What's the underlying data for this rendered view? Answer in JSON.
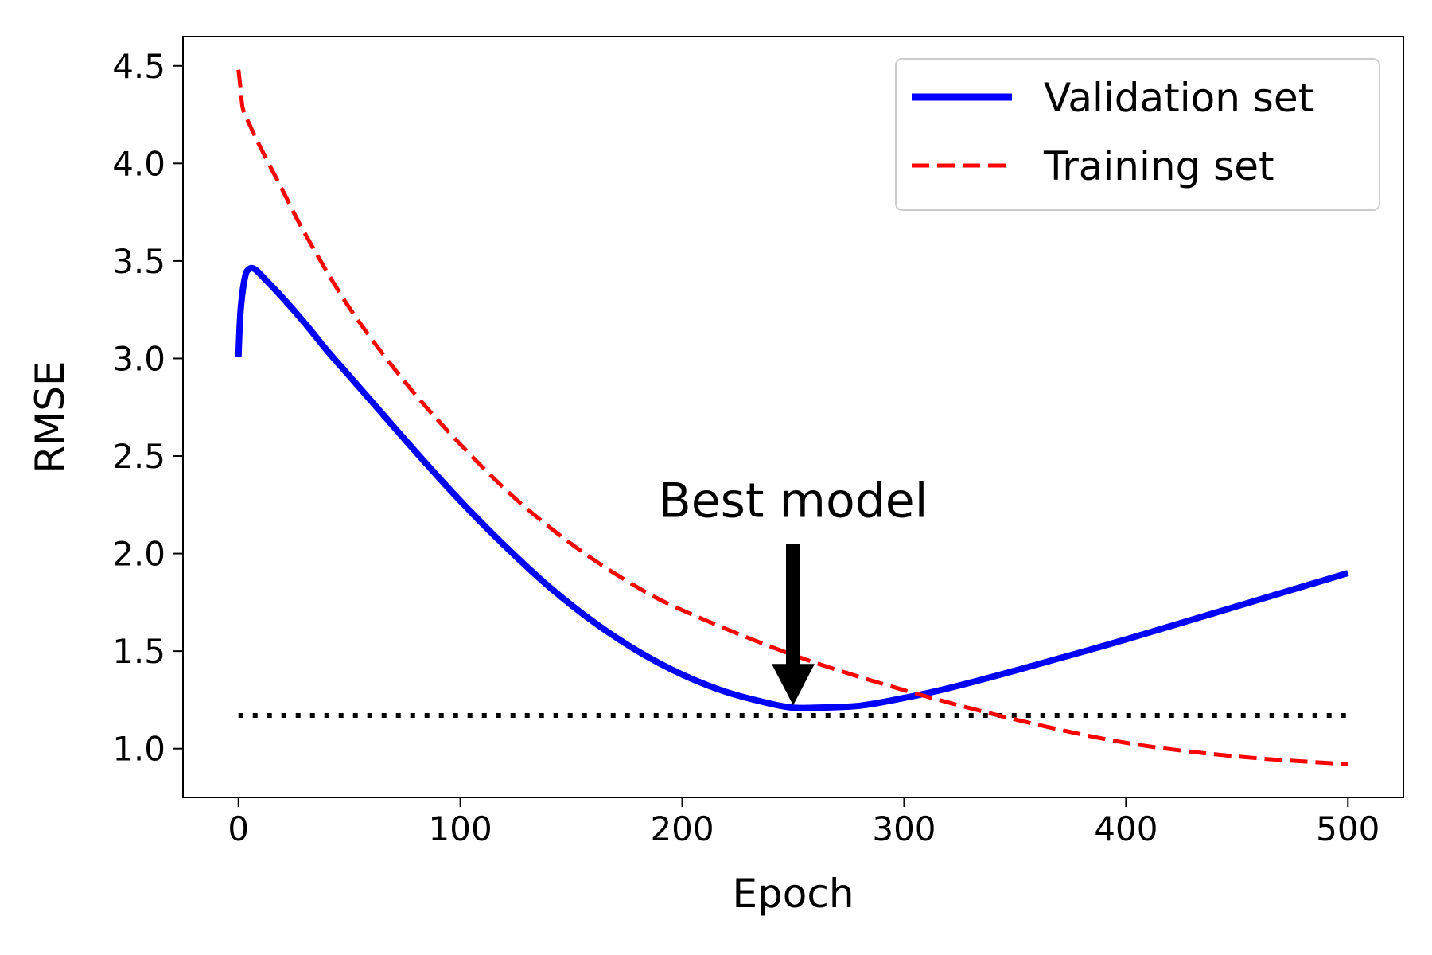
{
  "chart_data": {
    "type": "line",
    "xlabel": "Epoch",
    "ylabel": "RMSE",
    "xlim": [
      -25,
      525
    ],
    "ylim": [
      0.75,
      4.65
    ],
    "x_ticks": [
      0,
      100,
      200,
      300,
      400,
      500
    ],
    "x_tick_labels": [
      "0",
      "100",
      "200",
      "300",
      "400",
      "500"
    ],
    "y_ticks": [
      1.0,
      1.5,
      2.0,
      2.5,
      3.0,
      3.5,
      4.0,
      4.5
    ],
    "y_tick_labels": [
      "1.0",
      "1.5",
      "2.0",
      "2.5",
      "3.0",
      "3.5",
      "4.0",
      "4.5"
    ],
    "grid": false,
    "legend_position": "top-right",
    "series": [
      {
        "name": "Validation set",
        "color": "#0000ff",
        "style": "solid",
        "x": [
          0,
          1,
          3,
          5,
          7,
          10,
          20,
          30,
          40,
          50,
          60,
          80,
          100,
          120,
          140,
          160,
          180,
          200,
          220,
          240,
          250,
          260,
          280,
          300,
          320,
          350,
          400,
          450,
          500
        ],
        "y": [
          3.01,
          3.25,
          3.42,
          3.46,
          3.46,
          3.43,
          3.31,
          3.18,
          3.04,
          2.91,
          2.78,
          2.52,
          2.27,
          2.04,
          1.83,
          1.65,
          1.5,
          1.38,
          1.29,
          1.23,
          1.21,
          1.21,
          1.22,
          1.26,
          1.31,
          1.4,
          1.56,
          1.73,
          1.9
        ]
      },
      {
        "name": "Training set",
        "color": "#ff0000",
        "style": "dashed",
        "x": [
          0,
          1,
          2,
          5,
          10,
          20,
          30,
          50,
          75,
          100,
          125,
          150,
          175,
          200,
          250,
          300,
          350,
          400,
          450,
          500
        ],
        "y": [
          4.48,
          4.38,
          4.28,
          4.2,
          4.08,
          3.86,
          3.64,
          3.26,
          2.88,
          2.56,
          2.28,
          2.05,
          1.86,
          1.71,
          1.48,
          1.3,
          1.15,
          1.03,
          0.96,
          0.92
        ]
      }
    ],
    "reference_lines": [
      {
        "kind": "horizontal",
        "y": 1.17,
        "x_start": 0,
        "x_end": 500,
        "color": "#000000",
        "style": "dotted"
      }
    ],
    "annotations": [
      {
        "text": "Best model",
        "arrow_from": [
          250,
          2.05
        ],
        "arrow_to": [
          250,
          1.21
        ]
      }
    ]
  }
}
